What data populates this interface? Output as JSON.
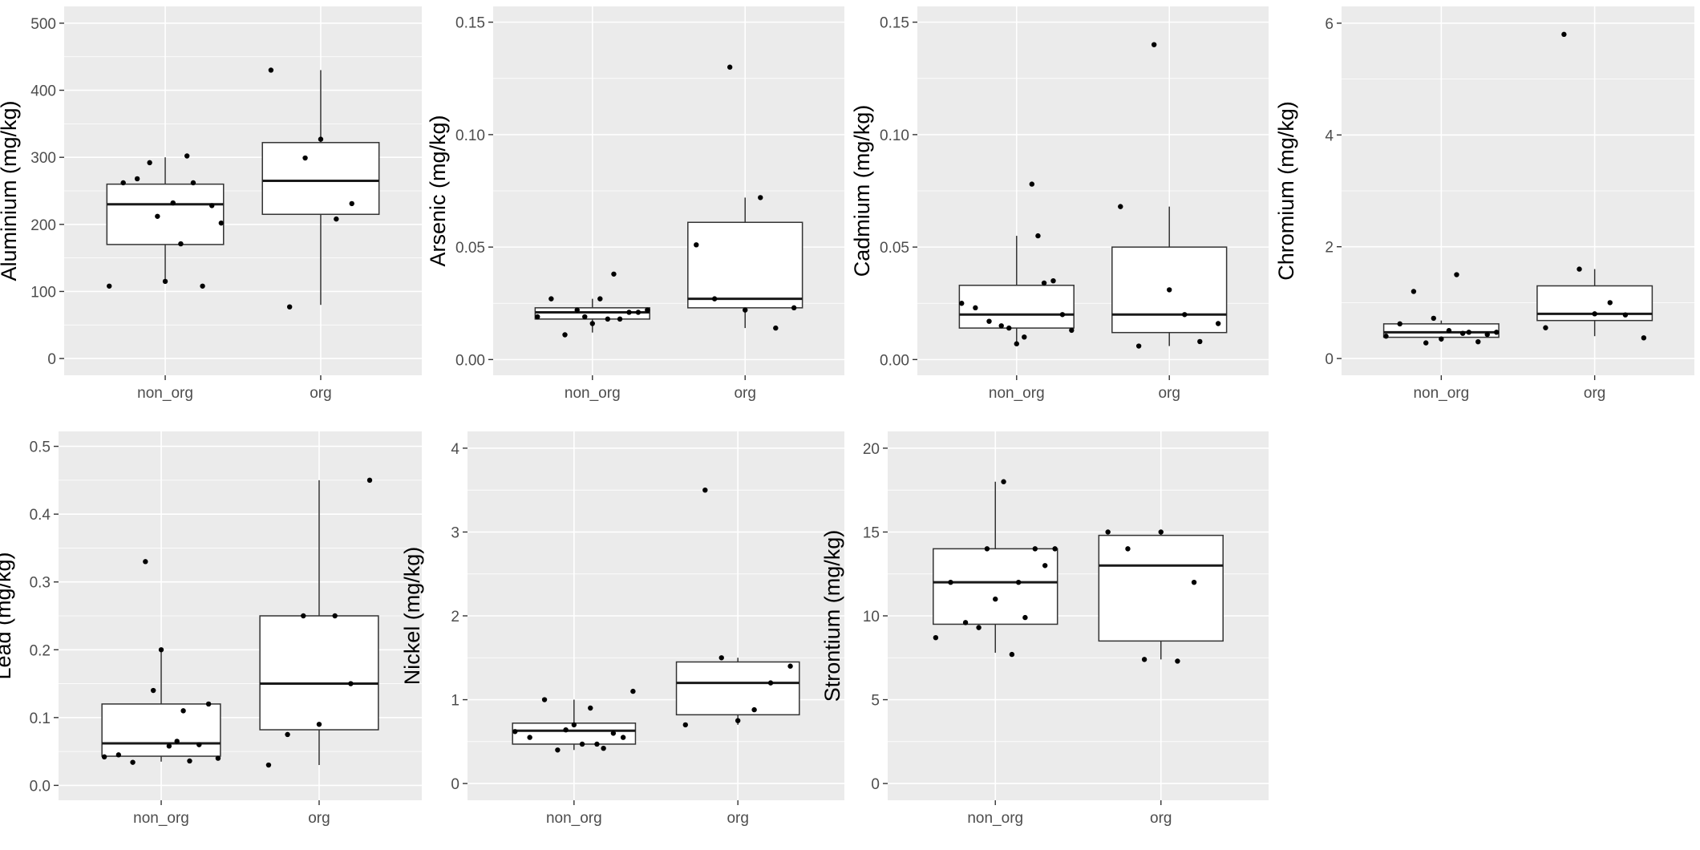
{
  "chart_data": [
    {
      "type": "box",
      "title": "",
      "xlabel": "",
      "ylabel": "Aluminium (mg/kg)",
      "ylim": [
        -25,
        525
      ],
      "yticks": [
        0,
        100,
        200,
        300,
        400,
        500
      ],
      "ytick_labels": [
        "0",
        "100",
        "200",
        "300",
        "400",
        "500"
      ],
      "categories": [
        "non_org",
        "org"
      ],
      "boxes": [
        {
          "category": "non_org",
          "min": 115,
          "q1": 170,
          "median": 230,
          "q3": 260,
          "max": 300
        },
        {
          "category": "org",
          "min": 80,
          "q1": 215,
          "median": 265,
          "q3": 322,
          "max": 430
        }
      ],
      "points": [
        {
          "category": "non_org",
          "values": [
            108,
            262,
            268,
            292,
            212,
            115,
            232,
            171,
            302,
            262,
            108,
            228,
            202
          ]
        },
        {
          "category": "org",
          "values": [
            430,
            77,
            299,
            327,
            208,
            231
          ]
        }
      ],
      "grid": true
    },
    {
      "type": "box",
      "title": "",
      "xlabel": "",
      "ylabel": "Arsenic (mg/kg)",
      "ylim": [
        -0.007,
        0.157
      ],
      "yticks": [
        0.0,
        0.05,
        0.1,
        0.15
      ],
      "ytick_labels": [
        "0.00",
        "0.05",
        "0.10",
        "0.15"
      ],
      "categories": [
        "non_org",
        "org"
      ],
      "boxes": [
        {
          "category": "non_org",
          "min": 0.012,
          "q1": 0.018,
          "median": 0.021,
          "q3": 0.023,
          "max": 0.027
        },
        {
          "category": "org",
          "min": 0.014,
          "q1": 0.023,
          "median": 0.027,
          "q3": 0.061,
          "max": 0.072
        }
      ],
      "points": [
        {
          "category": "non_org",
          "values": [
            0.019,
            0.027,
            0.011,
            0.022,
            0.019,
            0.016,
            0.027,
            0.018,
            0.038,
            0.018,
            0.021,
            0.021,
            0.022
          ]
        },
        {
          "category": "org",
          "values": [
            0.051,
            0.027,
            0.13,
            0.022,
            0.072,
            0.014,
            0.023
          ]
        }
      ],
      "grid": true
    },
    {
      "type": "box",
      "title": "",
      "xlabel": "",
      "ylabel": "Cadmium (mg/kg)",
      "ylim": [
        -0.007,
        0.157
      ],
      "yticks": [
        0.0,
        0.05,
        0.1,
        0.15
      ],
      "ytick_labels": [
        "0.00",
        "0.05",
        "0.10",
        "0.15"
      ],
      "categories": [
        "non_org",
        "org"
      ],
      "boxes": [
        {
          "category": "non_org",
          "min": 0.007,
          "q1": 0.014,
          "median": 0.02,
          "q3": 0.033,
          "max": 0.055
        },
        {
          "category": "org",
          "min": 0.006,
          "q1": 0.012,
          "median": 0.02,
          "q3": 0.05,
          "max": 0.068
        }
      ],
      "points": [
        {
          "category": "non_org",
          "values": [
            0.025,
            0.023,
            0.017,
            0.015,
            0.014,
            0.007,
            0.01,
            0.078,
            0.055,
            0.034,
            0.035,
            0.02,
            0.013
          ]
        },
        {
          "category": "org",
          "values": [
            0.068,
            0.006,
            0.14,
            0.031,
            0.02,
            0.008,
            0.016
          ]
        }
      ],
      "grid": true
    },
    {
      "type": "box",
      "title": "",
      "xlabel": "",
      "ylabel": "Chromium (mg/kg)",
      "ylim": [
        -0.3,
        6.3
      ],
      "yticks": [
        0,
        2,
        4,
        6
      ],
      "ytick_labels": [
        "0",
        "2",
        "4",
        "6"
      ],
      "categories": [
        "non_org",
        "org"
      ],
      "boxes": [
        {
          "category": "non_org",
          "min": 0.3,
          "q1": 0.38,
          "median": 0.47,
          "q3": 0.62,
          "max": 0.68
        },
        {
          "category": "org",
          "min": 0.4,
          "q1": 0.68,
          "median": 0.8,
          "q3": 1.3,
          "max": 1.6
        }
      ],
      "points": [
        {
          "category": "non_org",
          "values": [
            0.4,
            0.62,
            1.2,
            0.28,
            0.72,
            0.35,
            0.5,
            1.5,
            0.45,
            0.47,
            0.3,
            0.43,
            0.47
          ]
        },
        {
          "category": "org",
          "values": [
            0.55,
            5.8,
            1.6,
            0.8,
            1.0,
            0.78,
            0.37
          ]
        }
      ],
      "grid": true
    },
    {
      "type": "box",
      "title": "",
      "xlabel": "",
      "ylabel": "Lead (mg/kg)",
      "ylim": [
        -0.022,
        0.522
      ],
      "yticks": [
        0.0,
        0.1,
        0.2,
        0.3,
        0.4,
        0.5
      ],
      "ytick_labels": [
        "0.0",
        "0.1",
        "0.2",
        "0.3",
        "0.4",
        "0.5"
      ],
      "categories": [
        "non_org",
        "org"
      ],
      "boxes": [
        {
          "category": "non_org",
          "min": 0.035,
          "q1": 0.043,
          "median": 0.062,
          "q3": 0.12,
          "max": 0.2
        },
        {
          "category": "org",
          "min": 0.03,
          "q1": 0.082,
          "median": 0.15,
          "q3": 0.25,
          "max": 0.45
        }
      ],
      "points": [
        {
          "category": "non_org",
          "values": [
            0.042,
            0.045,
            0.034,
            0.33,
            0.14,
            0.2,
            0.058,
            0.065,
            0.11,
            0.036,
            0.06,
            0.12,
            0.04
          ]
        },
        {
          "category": "org",
          "values": [
            0.03,
            0.075,
            0.25,
            0.09,
            0.25,
            0.15,
            0.45
          ]
        }
      ],
      "grid": true
    },
    {
      "type": "box",
      "title": "",
      "xlabel": "",
      "ylabel": "Nickel (mg/kg)",
      "ylim": [
        -0.2,
        4.2
      ],
      "yticks": [
        0,
        1,
        2,
        3,
        4
      ],
      "ytick_labels": [
        "0",
        "1",
        "2",
        "3",
        "4"
      ],
      "categories": [
        "non_org",
        "org"
      ],
      "boxes": [
        {
          "category": "non_org",
          "min": 0.4,
          "q1": 0.47,
          "median": 0.63,
          "q3": 0.72,
          "max": 1.0
        },
        {
          "category": "org",
          "min": 0.7,
          "q1": 0.82,
          "median": 1.2,
          "q3": 1.45,
          "max": 1.5
        }
      ],
      "points": [
        {
          "category": "non_org",
          "values": [
            0.62,
            0.55,
            1.0,
            0.4,
            0.64,
            0.7,
            0.47,
            0.9,
            0.47,
            0.42,
            0.6,
            0.55,
            1.1
          ]
        },
        {
          "category": "org",
          "values": [
            0.7,
            3.5,
            1.5,
            0.75,
            0.88,
            1.2,
            1.4
          ]
        }
      ],
      "grid": true
    },
    {
      "type": "box",
      "title": "",
      "xlabel": "",
      "ylabel": "Strontium (mg/kg)",
      "ylim": [
        -1,
        21
      ],
      "yticks": [
        0,
        5,
        10,
        15,
        20
      ],
      "ytick_labels": [
        "0",
        "5",
        "10",
        "15",
        "20"
      ],
      "categories": [
        "non_org",
        "org"
      ],
      "boxes": [
        {
          "category": "non_org",
          "min": 7.8,
          "q1": 9.5,
          "median": 12,
          "q3": 14,
          "max": 18
        },
        {
          "category": "org",
          "min": 7.4,
          "q1": 8.5,
          "median": 13,
          "q3": 14.8,
          "max": 15
        }
      ],
      "points": [
        {
          "category": "non_org",
          "values": [
            8.7,
            12,
            9.6,
            9.3,
            14,
            11,
            18,
            7.7,
            12,
            9.9,
            14,
            13,
            14
          ]
        },
        {
          "category": "org",
          "values": [
            15,
            14,
            7.4,
            15,
            7.3,
            12
          ]
        }
      ],
      "grid": true
    }
  ]
}
